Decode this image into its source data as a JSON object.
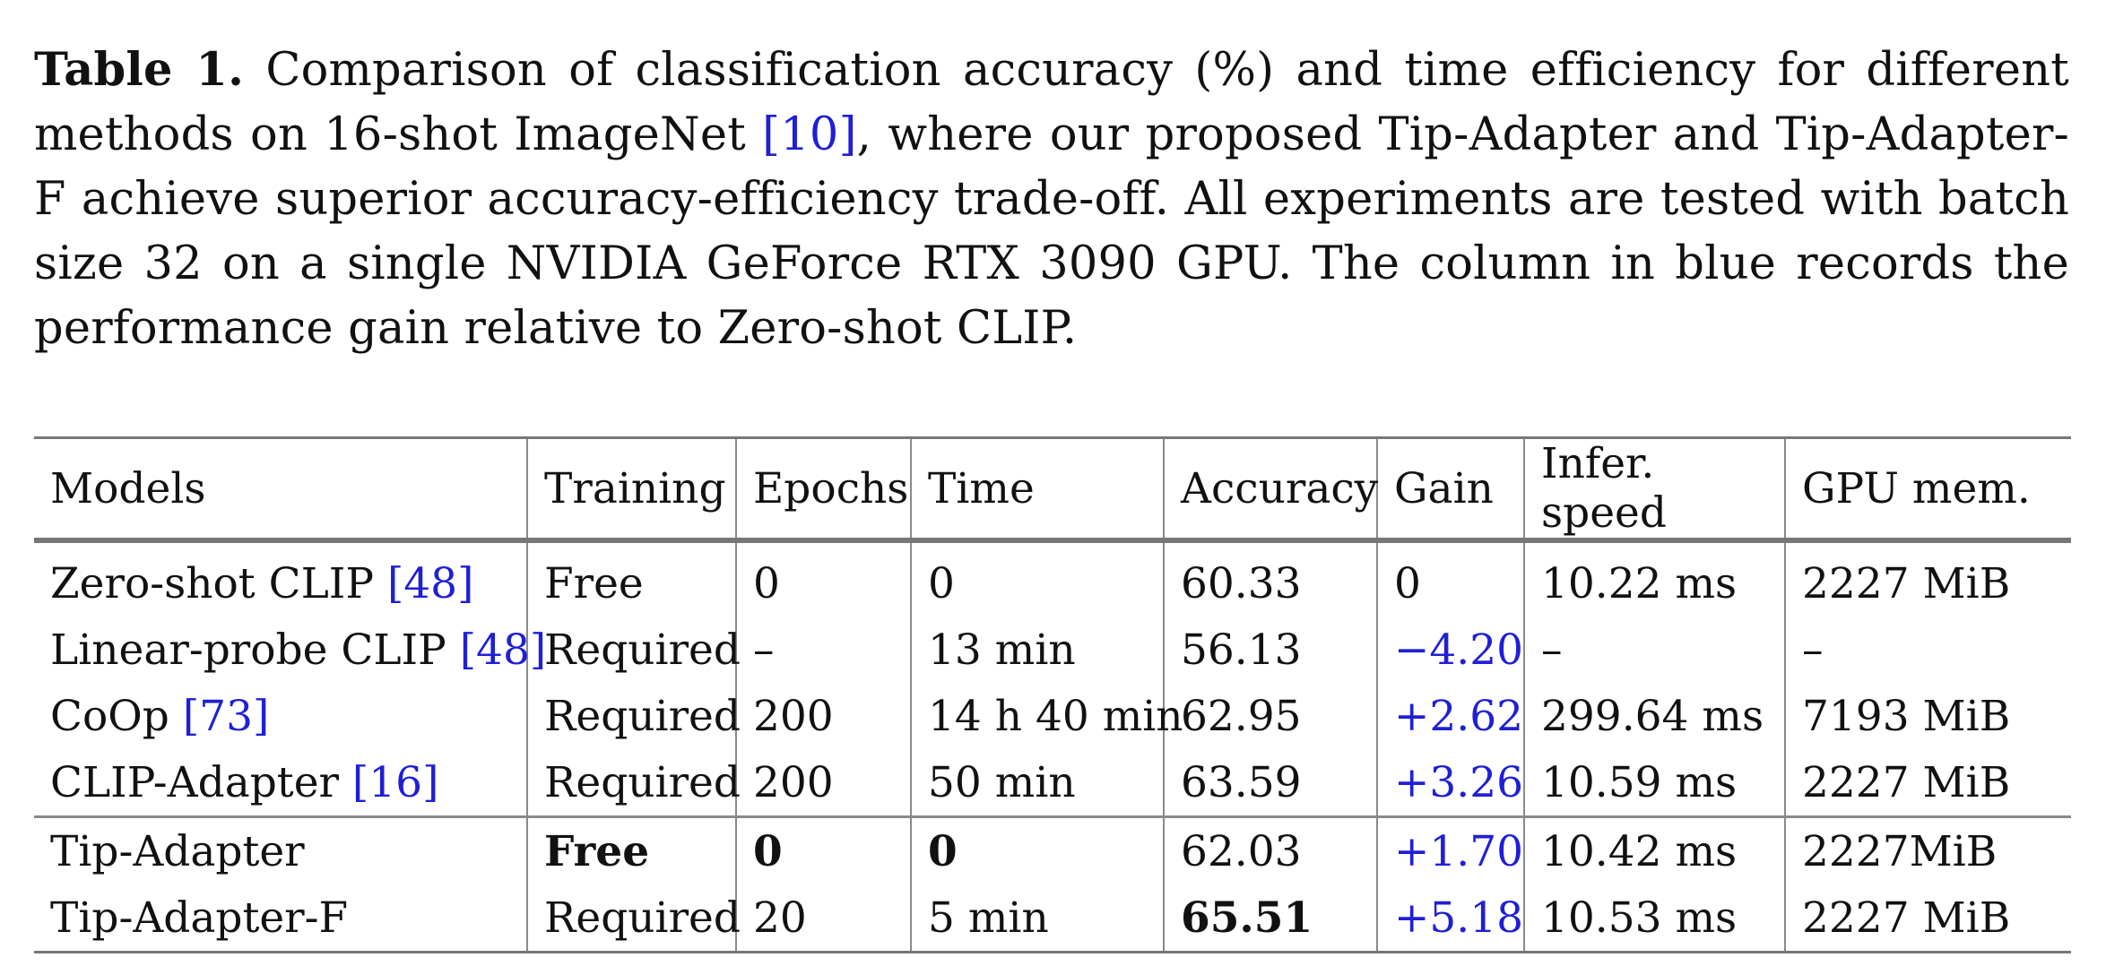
{
  "caption": {
    "label": "Table 1.",
    "text_part1": " Comparison of classification accuracy (%) and time efficiency for different methods on 16-shot ImageNet ",
    "cite": "[10]",
    "text_part2": ", where our proposed Tip-Adapter and Tip-Adapter-F achieve superior accuracy-efficiency trade-off. All experiments are tested with batch size 32 on a single NVIDIA GeForce RTX 3090 GPU. The column in blue records the performance gain relative to Zero-shot CLIP."
  },
  "table": {
    "headers": [
      "Models",
      "Training",
      "Epochs",
      "Time",
      "Accuracy",
      "Gain",
      "Infer. speed",
      "GPU mem."
    ],
    "rows": [
      {
        "model": "Zero-shot CLIP ",
        "cite": "[48]",
        "training": "Free",
        "epochs": "0",
        "time": "0",
        "accuracy": "60.33",
        "gain": "0",
        "speed": "10.22 ms",
        "mem": "2227 MiB"
      },
      {
        "model": "Linear-probe CLIP ",
        "cite": "[48]",
        "training": "Required",
        "epochs": "–",
        "time": "13 min",
        "accuracy": "56.13",
        "gain": "−4.20",
        "speed": "–",
        "mem": "–"
      },
      {
        "model": "CoOp ",
        "cite": "[73]",
        "training": "Required",
        "epochs": "200",
        "time": "14 h 40 min",
        "accuracy": "62.95",
        "gain": "+2.62",
        "speed": "299.64 ms",
        "mem": "7193 MiB"
      },
      {
        "model": "CLIP-Adapter ",
        "cite": "[16]",
        "training": "Required",
        "epochs": "200",
        "time": "50 min",
        "accuracy": "63.59",
        "gain": "+3.26",
        "speed": "10.59 ms",
        "mem": "2227 MiB"
      },
      {
        "model": "Tip-Adapter",
        "cite": "",
        "training": "Free",
        "epochs": "0",
        "time": "0",
        "accuracy": "62.03",
        "gain": "+1.70",
        "speed": "10.42 ms",
        "mem": "2227MiB"
      },
      {
        "model": "Tip-Adapter-F",
        "cite": "",
        "training": "Required",
        "epochs": "20",
        "time": "5 min",
        "accuracy": "65.51",
        "gain": "+5.18",
        "speed": "10.53 ms",
        "mem": "2227 MiB"
      }
    ]
  },
  "colors": {
    "citation": "#1f1fd6",
    "gain_column": "#1f1fd6",
    "rules": "#777777"
  }
}
